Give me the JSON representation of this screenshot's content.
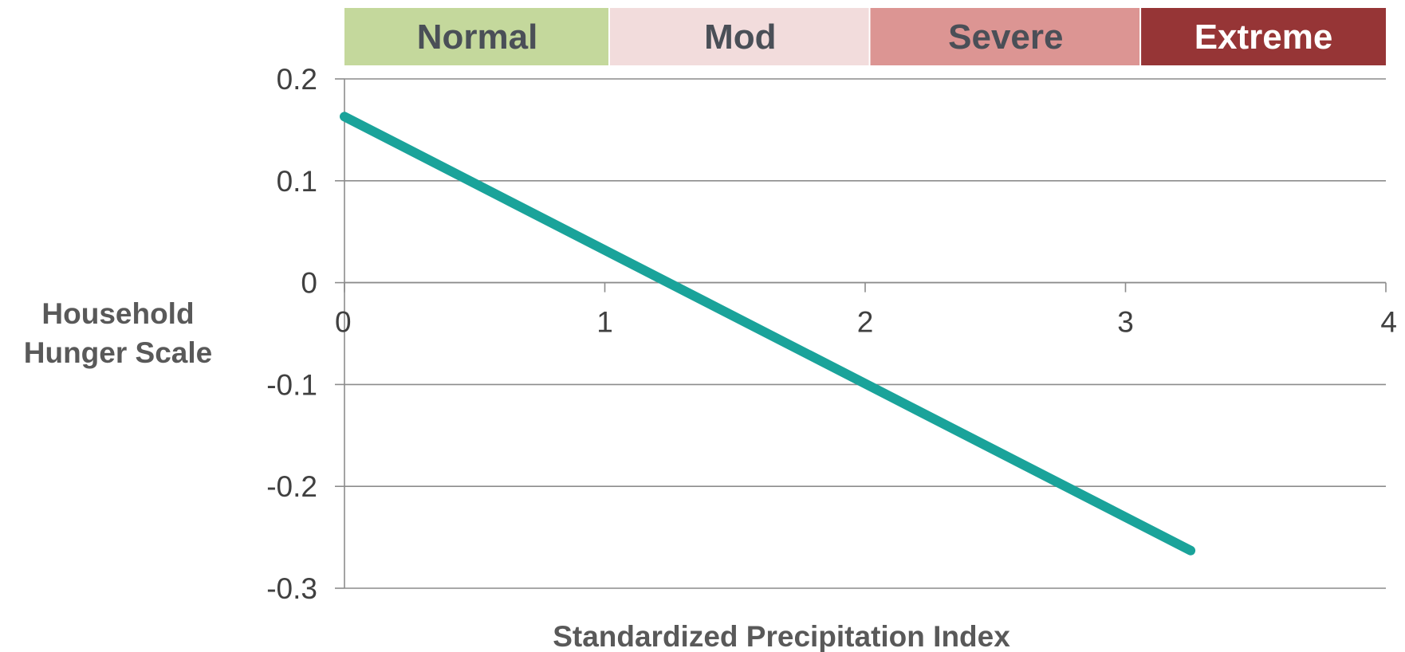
{
  "chart_data": {
    "type": "line",
    "title": "",
    "xlabel": "Standardized Precipitation Index",
    "ylabel": "Household Hunger Scale",
    "xlim": [
      0,
      4
    ],
    "ylim": [
      -0.3,
      0.2
    ],
    "x_ticks": [
      "0",
      "1",
      "2",
      "3",
      "4"
    ],
    "y_ticks": [
      "0.2",
      "0.1",
      "0",
      "-0.1",
      "-0.2",
      "-0.3"
    ],
    "grid": true,
    "legend": "none",
    "series": [
      {
        "color": "#1aa39a",
        "x": [
          0,
          3.25
        ],
        "y": [
          0.163,
          -0.263
        ]
      }
    ],
    "bands": [
      {
        "label": "Normal",
        "x0": 0,
        "x1": 1.02,
        "fill": "#c4d89c",
        "text_color": "#4a4f57"
      },
      {
        "label": "Mod",
        "x0": 1.02,
        "x1": 2.02,
        "fill": "#f2dcdc",
        "text_color": "#4a4f57"
      },
      {
        "label": "Severe",
        "x0": 2.02,
        "x1": 3.06,
        "fill": "#dc9593",
        "text_color": "#4a4f57"
      },
      {
        "label": "Extreme",
        "x0": 3.06,
        "x1": 4.0,
        "fill": "#963536",
        "text_color": "#ffffff"
      }
    ],
    "colors": {
      "grid": "#8c8c8c",
      "axis": "#8c8c8c"
    }
  }
}
